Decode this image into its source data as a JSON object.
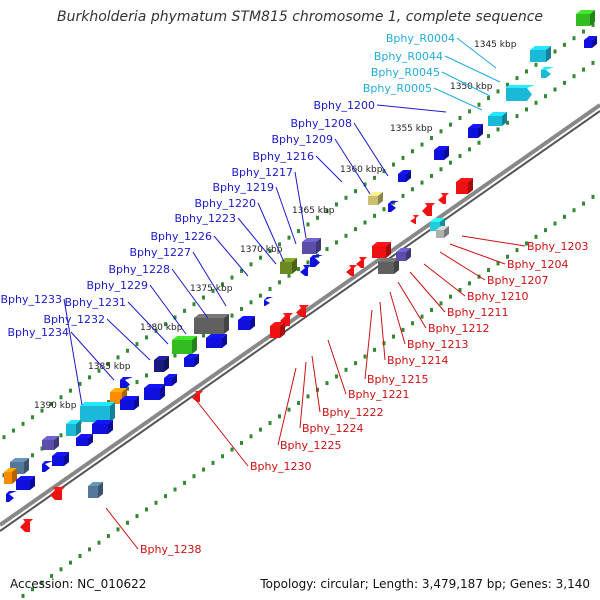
{
  "title": "Burkholderia phymatum STM815 chromosome 1, complete sequence",
  "footer": {
    "accession": "Accession: NC_010622",
    "summary": "Topology: circular; Length: 3,479,187 bp; Genes: 3,140"
  },
  "scale_labels": [
    "1345 kbp",
    "1350 kbp",
    "1355 kbp",
    "1360 kbp",
    "1365 kbp",
    "1370 kbp",
    "1375 kbp",
    "1380 kbp",
    "1385 kbp",
    "1390 kbp"
  ],
  "colors": {
    "forward_label": "#1a1acc",
    "rna_label": "#22aadd",
    "reverse_label": "#cc1111",
    "backbone": "#888888",
    "ticks": "#338833"
  },
  "labels_forward": [
    "Bphy_1200",
    "Bphy_1208",
    "Bphy_1209",
    "Bphy_1216",
    "Bphy_1217",
    "Bphy_1219",
    "Bphy_1220",
    "Bphy_1223",
    "Bphy_1226",
    "Bphy_1227",
    "Bphy_1228",
    "Bphy_1229",
    "Bphy_1231",
    "Bphy_1232",
    "Bphy_1233",
    "Bphy_1234"
  ],
  "labels_rna": [
    "Bphy_R0004",
    "Bphy_R0044",
    "Bphy_R0045",
    "Bphy_R0005"
  ],
  "labels_reverse": [
    "Bphy_1203",
    "Bphy_1204",
    "Bphy_1207",
    "Bphy_1210",
    "Bphy_1211",
    "Bphy_1212",
    "Bphy_1213",
    "Bphy_1214",
    "Bphy_1215",
    "Bphy_1221",
    "Bphy_1222",
    "Bphy_1224",
    "Bphy_1225",
    "Bphy_1230",
    "Bphy_1238"
  ]
}
